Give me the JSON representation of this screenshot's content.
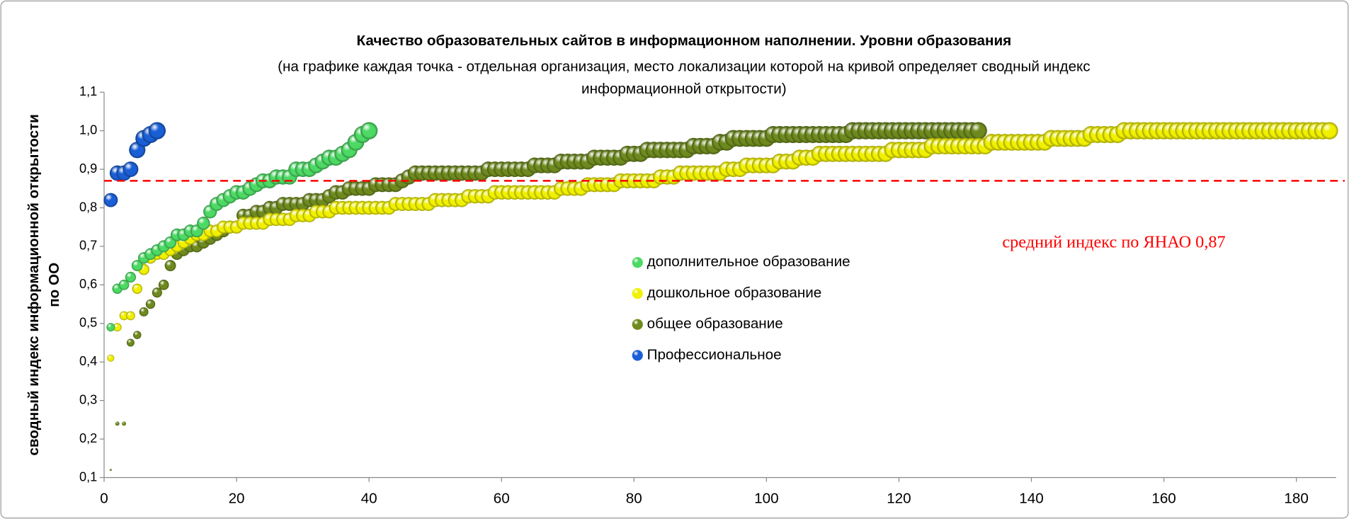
{
  "chart_data": {
    "type": "bubble",
    "title": "Качество образовательных сайтов в информационном наполнении. Уровни образования",
    "subtitle": [
      "(на графике каждая точка - отдельная организация, место локализации которой на кривой определяет сводный индекс",
      "информационной открытости)"
    ],
    "y_label": [
      "сводный индекс информационной открытости",
      "по ОО"
    ],
    "annotation": "средний индекс по ЯНАО 0,87",
    "reference_line": {
      "value": 0.87,
      "color": "#ff0000"
    },
    "xlim": [
      0,
      186
    ],
    "xticks": [
      0,
      20,
      40,
      60,
      80,
      100,
      120,
      140,
      160,
      180
    ],
    "ylim": [
      0.1,
      1.1
    ],
    "yticks": [
      {
        "value": 0.1,
        "label": "0,1"
      },
      {
        "value": 0.2,
        "label": "0,2"
      },
      {
        "value": 0.3,
        "label": "0,3"
      },
      {
        "value": 0.4,
        "label": "0,4"
      },
      {
        "value": 0.5,
        "label": "0,5"
      },
      {
        "value": 0.6,
        "label": "0,6"
      },
      {
        "value": 0.7,
        "label": "0,7"
      },
      {
        "value": 0.8,
        "label": "0,8"
      },
      {
        "value": 0.9,
        "label": "0,9"
      },
      {
        "value": 1.0,
        "label": "1,0"
      },
      {
        "value": 1.1,
        "label": "1,1"
      }
    ],
    "grid": false,
    "series": [
      {
        "name": "дополнительное образование",
        "color": "#4cd964",
        "x": [
          1,
          2,
          3,
          4,
          5,
          6,
          7,
          8,
          9,
          10,
          11,
          12,
          13,
          14,
          15,
          16,
          17,
          18,
          19,
          20,
          21,
          22,
          23,
          24,
          25,
          26,
          27,
          28,
          29,
          30,
          31,
          32,
          33,
          34,
          35,
          36,
          37,
          38,
          39,
          40
        ],
        "values": [
          0.49,
          0.59,
          0.6,
          0.62,
          0.65,
          0.67,
          0.68,
          0.69,
          0.7,
          0.71,
          0.73,
          0.73,
          0.74,
          0.74,
          0.76,
          0.79,
          0.81,
          0.82,
          0.83,
          0.84,
          0.84,
          0.85,
          0.86,
          0.87,
          0.87,
          0.88,
          0.88,
          0.88,
          0.9,
          0.9,
          0.9,
          0.91,
          0.92,
          0.93,
          0.93,
          0.94,
          0.95,
          0.97,
          0.99,
          1.0
        ]
      },
      {
        "name": "дошкольное образование",
        "color": "#f0f000",
        "x": [
          1,
          2,
          3,
          4,
          5,
          6,
          7,
          8,
          9,
          10,
          11,
          12,
          13,
          14,
          15,
          16,
          17,
          18,
          19,
          20,
          21,
          22,
          23,
          24,
          25,
          26,
          27,
          28,
          29,
          30,
          31,
          32,
          33,
          34,
          35,
          36,
          37,
          38,
          39,
          40,
          41,
          42,
          43,
          44,
          45,
          46,
          47,
          48,
          49,
          50,
          51,
          52,
          53,
          54,
          55,
          56,
          57,
          58,
          59,
          60,
          61,
          62,
          63,
          64,
          65,
          66,
          67,
          68,
          69,
          70,
          71,
          72,
          73,
          74,
          75,
          76,
          77,
          78,
          79,
          80,
          81,
          82,
          83,
          84,
          85,
          86,
          87,
          88,
          89,
          90,
          91,
          92,
          93,
          94,
          95,
          96,
          97,
          98,
          99,
          100,
          101,
          102,
          103,
          104,
          105,
          106,
          107,
          108,
          109,
          110,
          111,
          112,
          113,
          114,
          115,
          116,
          117,
          118,
          119,
          120,
          121,
          122,
          123,
          124,
          125,
          126,
          127,
          128,
          129,
          130,
          131,
          132,
          133,
          134,
          135,
          136,
          137,
          138,
          139,
          140,
          141,
          142,
          143,
          144,
          145,
          146,
          147,
          148,
          149,
          150,
          151,
          152,
          153,
          154,
          155,
          156,
          157,
          158,
          159,
          160,
          161,
          162,
          163,
          164,
          165,
          166,
          167,
          168,
          169,
          170,
          171,
          172,
          173,
          174,
          175,
          176,
          177,
          178,
          179,
          180,
          181,
          182,
          183,
          184,
          185
        ],
        "values": [
          0.41,
          0.49,
          0.52,
          0.52,
          0.59,
          0.64,
          0.67,
          0.68,
          0.68,
          0.69,
          0.7,
          0.71,
          0.72,
          0.73,
          0.73,
          0.74,
          0.74,
          0.75,
          0.75,
          0.75,
          0.76,
          0.76,
          0.76,
          0.76,
          0.77,
          0.77,
          0.77,
          0.77,
          0.78,
          0.78,
          0.78,
          0.79,
          0.79,
          0.79,
          0.8,
          0.8,
          0.8,
          0.8,
          0.8,
          0.8,
          0.8,
          0.8,
          0.8,
          0.81,
          0.81,
          0.81,
          0.81,
          0.81,
          0.81,
          0.82,
          0.82,
          0.82,
          0.82,
          0.82,
          0.83,
          0.83,
          0.83,
          0.83,
          0.84,
          0.84,
          0.84,
          0.84,
          0.84,
          0.84,
          0.84,
          0.84,
          0.84,
          0.84,
          0.85,
          0.85,
          0.85,
          0.85,
          0.86,
          0.86,
          0.86,
          0.86,
          0.86,
          0.87,
          0.87,
          0.87,
          0.87,
          0.87,
          0.87,
          0.88,
          0.88,
          0.88,
          0.89,
          0.89,
          0.89,
          0.89,
          0.89,
          0.89,
          0.89,
          0.9,
          0.9,
          0.9,
          0.91,
          0.91,
          0.91,
          0.91,
          0.91,
          0.92,
          0.92,
          0.92,
          0.93,
          0.93,
          0.93,
          0.94,
          0.94,
          0.94,
          0.94,
          0.94,
          0.94,
          0.94,
          0.94,
          0.94,
          0.94,
          0.94,
          0.95,
          0.95,
          0.95,
          0.95,
          0.95,
          0.95,
          0.96,
          0.96,
          0.96,
          0.96,
          0.96,
          0.96,
          0.96,
          0.96,
          0.96,
          0.97,
          0.97,
          0.97,
          0.97,
          0.97,
          0.97,
          0.97,
          0.97,
          0.97,
          0.98,
          0.98,
          0.98,
          0.98,
          0.98,
          0.98,
          0.99,
          0.99,
          0.99,
          0.99,
          0.99,
          1.0,
          1.0,
          1.0,
          1.0,
          1.0,
          1.0,
          1.0,
          1.0,
          1.0,
          1.0,
          1.0,
          1.0,
          1.0,
          1.0,
          1.0,
          1.0,
          1.0,
          1.0,
          1.0,
          1.0,
          1.0,
          1.0,
          1.0,
          1.0,
          1.0,
          1.0,
          1.0,
          1.0,
          1.0,
          1.0,
          1.0,
          1.0
        ]
      },
      {
        "name": "общее образование",
        "color": "#6e8a1e",
        "x": [
          1,
          2,
          3,
          4,
          5,
          6,
          7,
          8,
          9,
          10,
          11,
          12,
          13,
          14,
          15,
          16,
          17,
          18,
          19,
          20,
          21,
          22,
          23,
          24,
          25,
          26,
          27,
          28,
          29,
          30,
          31,
          32,
          33,
          34,
          35,
          36,
          37,
          38,
          39,
          40,
          41,
          42,
          43,
          44,
          45,
          46,
          47,
          48,
          49,
          50,
          51,
          52,
          53,
          54,
          55,
          56,
          57,
          58,
          59,
          60,
          61,
          62,
          63,
          64,
          65,
          66,
          67,
          68,
          69,
          70,
          71,
          72,
          73,
          74,
          75,
          76,
          77,
          78,
          79,
          80,
          81,
          82,
          83,
          84,
          85,
          86,
          87,
          88,
          89,
          90,
          91,
          92,
          93,
          94,
          95,
          96,
          97,
          98,
          99,
          100,
          101,
          102,
          103,
          104,
          105,
          106,
          107,
          108,
          109,
          110,
          111,
          112,
          113,
          114,
          115,
          116,
          117,
          118,
          119,
          120,
          121,
          122,
          123,
          124,
          125,
          126,
          127,
          128,
          129,
          130,
          131,
          132
        ],
        "values": [
          0.12,
          0.24,
          0.24,
          0.45,
          0.47,
          0.53,
          0.55,
          0.58,
          0.6,
          0.65,
          0.68,
          0.69,
          0.7,
          0.7,
          0.71,
          0.72,
          0.73,
          0.74,
          0.75,
          0.75,
          0.78,
          0.78,
          0.79,
          0.79,
          0.8,
          0.8,
          0.81,
          0.81,
          0.81,
          0.81,
          0.82,
          0.82,
          0.82,
          0.83,
          0.84,
          0.84,
          0.85,
          0.85,
          0.85,
          0.85,
          0.86,
          0.86,
          0.86,
          0.86,
          0.87,
          0.88,
          0.89,
          0.89,
          0.89,
          0.89,
          0.89,
          0.89,
          0.89,
          0.89,
          0.89,
          0.89,
          0.89,
          0.9,
          0.9,
          0.9,
          0.9,
          0.9,
          0.9,
          0.9,
          0.91,
          0.91,
          0.91,
          0.91,
          0.92,
          0.92,
          0.92,
          0.92,
          0.92,
          0.93,
          0.93,
          0.93,
          0.93,
          0.93,
          0.94,
          0.94,
          0.94,
          0.95,
          0.95,
          0.95,
          0.95,
          0.95,
          0.95,
          0.95,
          0.96,
          0.96,
          0.96,
          0.96,
          0.97,
          0.97,
          0.98,
          0.98,
          0.98,
          0.98,
          0.98,
          0.98,
          0.99,
          0.99,
          0.99,
          0.99,
          0.99,
          0.99,
          0.99,
          0.99,
          0.99,
          0.99,
          0.99,
          0.99,
          1.0,
          1.0,
          1.0,
          1.0,
          1.0,
          1.0,
          1.0,
          1.0,
          1.0,
          1.0,
          1.0,
          1.0,
          1.0,
          1.0,
          1.0,
          1.0,
          1.0,
          1.0,
          1.0,
          1.0
        ]
      },
      {
        "name": "Профессиональное",
        "color": "#1a5fd6",
        "x": [
          1,
          2,
          3,
          4,
          5,
          6,
          7,
          8
        ],
        "values": [
          0.82,
          0.89,
          0.89,
          0.9,
          0.95,
          0.98,
          0.99,
          1.0
        ]
      }
    ]
  }
}
